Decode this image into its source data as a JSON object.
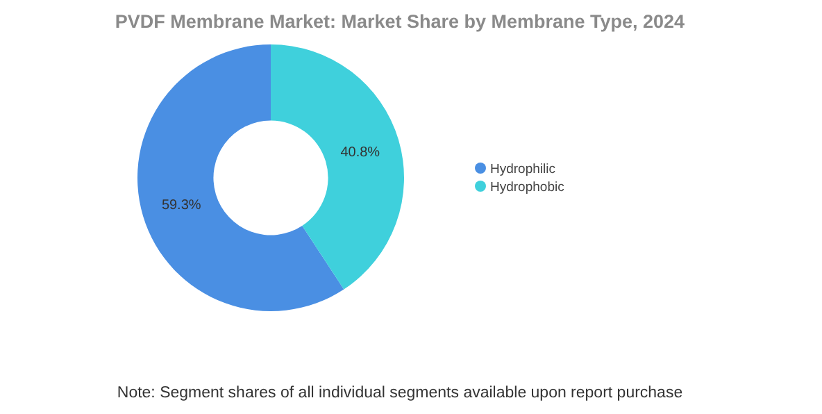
{
  "chart_data": {
    "type": "donut",
    "title": "PVDF Membrane Market: Market Share by Membrane Type, 2024",
    "categories": [
      "Hydrophilic",
      "Hydrophobic"
    ],
    "values": [
      59.3,
      40.8
    ],
    "value_labels": [
      "59.3%",
      "40.8%"
    ],
    "colors": [
      "#4a8fe3",
      "#3fd0dc"
    ],
    "legend": "right",
    "annotations": [
      "Note: Segment shares of all individual segments available upon report purchase"
    ]
  }
}
